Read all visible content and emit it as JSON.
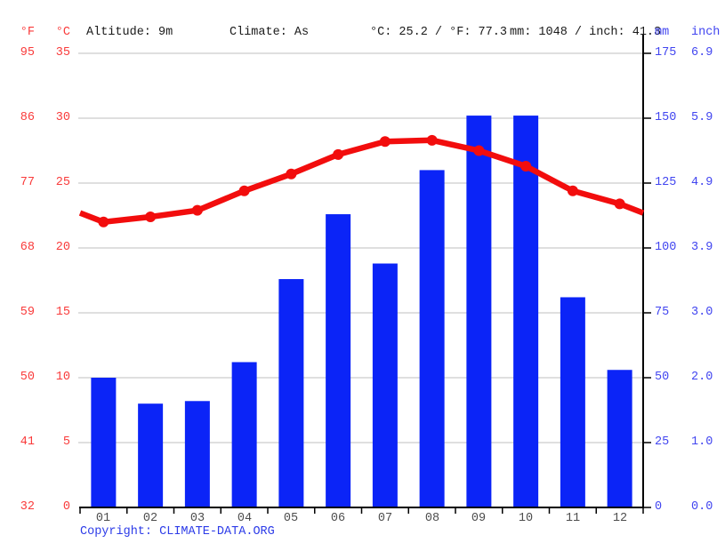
{
  "header": {
    "f_unit": "°F",
    "c_unit": "°C",
    "altitude": "Altitude: 9m",
    "climate": "Climate: As",
    "temp_summary": "°C: 25.2 / °F: 77.3",
    "precip_summary": "mm: 1048 / inch: 41.3",
    "mm_unit": "mm",
    "inch_unit": "inch"
  },
  "axes": {
    "left_f": [
      "95",
      "86",
      "77",
      "68",
      "59",
      "50",
      "41",
      "32"
    ],
    "left_c": [
      "35",
      "30",
      "25",
      "20",
      "15",
      "10",
      "5",
      "0"
    ],
    "right_mm": [
      "175",
      "150",
      "125",
      "100",
      "75",
      "50",
      "25",
      "0"
    ],
    "right_inch": [
      "6.9",
      "5.9",
      "4.9",
      "3.9",
      "3.0",
      "2.0",
      "1.0",
      "0.0"
    ]
  },
  "chart_data": {
    "type": "bar",
    "subtype": "climate-combo-bar-and-line",
    "categories": [
      "01",
      "02",
      "03",
      "04",
      "05",
      "06",
      "07",
      "08",
      "09",
      "10",
      "11",
      "12"
    ],
    "series": [
      {
        "name": "precipitation_mm",
        "type": "bar",
        "values": [
          50,
          40,
          41,
          56,
          88,
          113,
          94,
          130,
          151,
          151,
          81,
          53
        ],
        "color": "#0b24f7"
      },
      {
        "name": "temperature_c",
        "type": "line",
        "values": [
          22.0,
          22.4,
          22.9,
          24.4,
          25.7,
          27.2,
          28.2,
          28.3,
          27.5,
          26.3,
          24.4,
          23.4
        ],
        "color": "#f20d0d"
      }
    ],
    "temp_axis_range_c": [
      0,
      35
    ],
    "temp_axis_range_f": [
      32,
      95
    ],
    "precip_axis_range_mm": [
      0,
      175
    ],
    "precip_axis_range_inch": [
      0.0,
      6.9
    ],
    "grid": true,
    "gridline_step_c": 5,
    "gridline_step_mm": 25,
    "annual_mean_temp_c": 25.2,
    "annual_precip_mm": 1048,
    "legend_position": "none",
    "grid_color": "#cccccc",
    "axis_color": "#000000"
  },
  "footer": {
    "copyright_prefix": "Copyright: ",
    "copyright_link": "CLIMATE-DATA.ORG"
  }
}
